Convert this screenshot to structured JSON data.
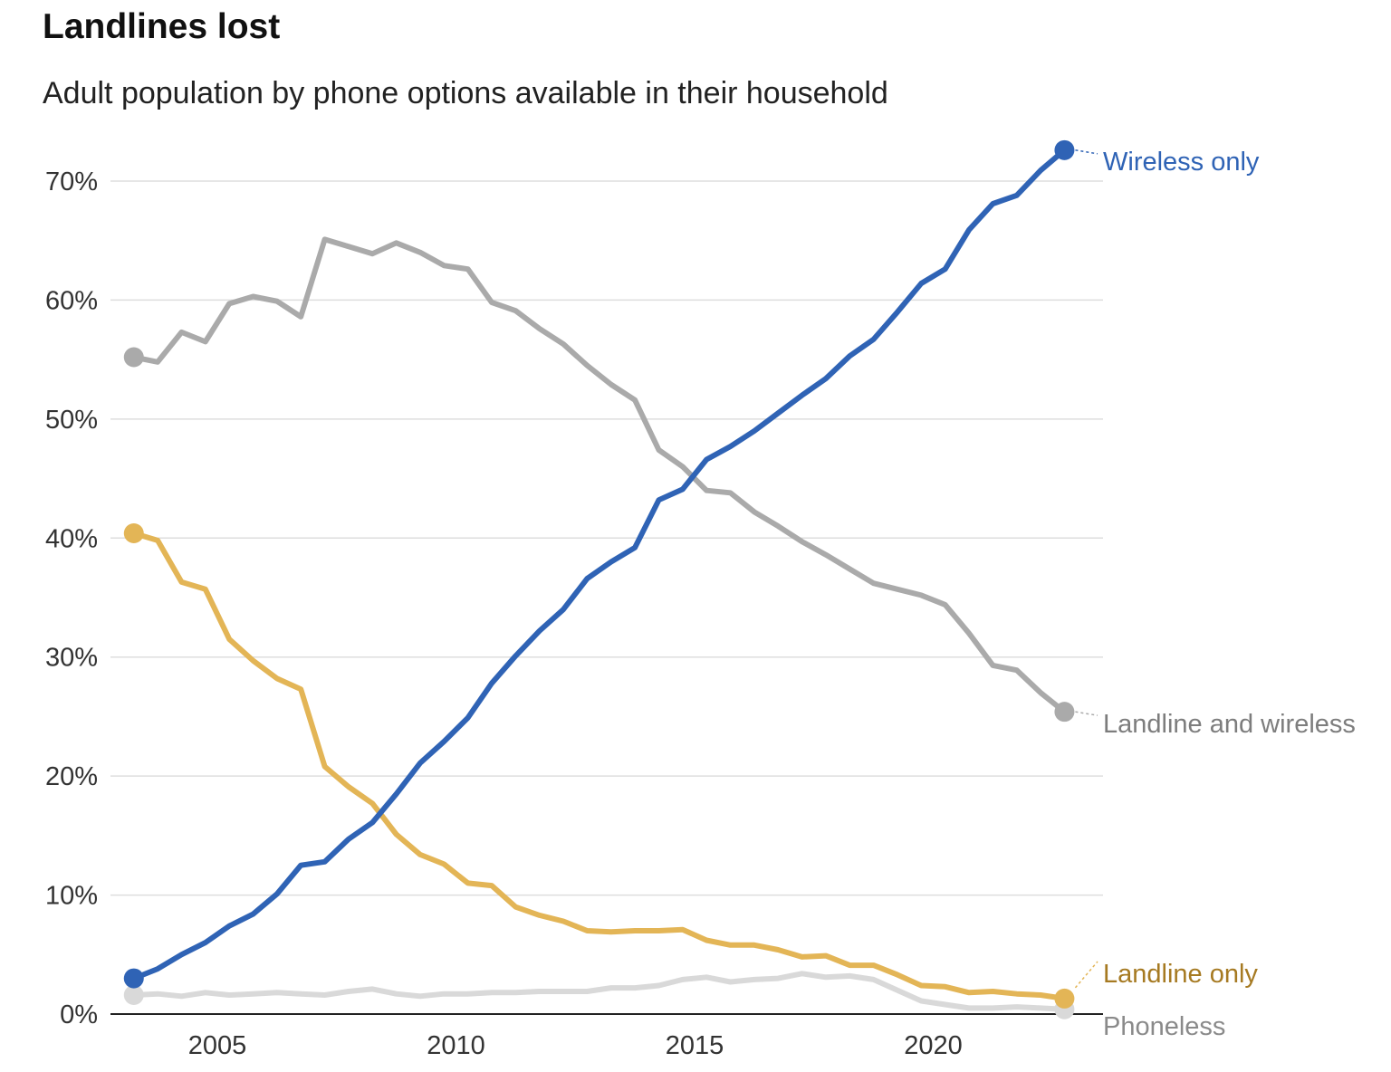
{
  "title": "Landlines lost",
  "subtitle": "Adult population by phone options available in their household",
  "chart_data": {
    "type": "line",
    "title": "Landlines lost",
    "subtitle": "Adult population by phone options available in their household",
    "xlabel": "",
    "ylabel": "",
    "xlim": [
      2003,
      2023.5
    ],
    "ylim": [
      0,
      70
    ],
    "x_ticks": [
      2005,
      2010,
      2015,
      2020
    ],
    "y_ticks": [
      0,
      10,
      20,
      30,
      40,
      50,
      60,
      70
    ],
    "y_tick_labels": [
      "0%",
      "10%",
      "20%",
      "30%",
      "40%",
      "50%",
      "60%",
      "70%"
    ],
    "grid": "horizontal",
    "legend": "direct labels at right",
    "x": [
      2003.25,
      2003.75,
      2004.25,
      2004.75,
      2005.25,
      2005.75,
      2006.25,
      2006.75,
      2007.25,
      2007.75,
      2008.25,
      2008.75,
      2009.25,
      2009.75,
      2010.25,
      2010.75,
      2011.25,
      2011.75,
      2012.25,
      2012.75,
      2013.25,
      2013.75,
      2014.25,
      2014.75,
      2015.25,
      2015.75,
      2016.25,
      2016.75,
      2017.25,
      2017.75,
      2018.25,
      2018.75,
      2019.25,
      2019.75,
      2020.25,
      2020.75,
      2021.25,
      2021.75,
      2022.25,
      2022.75
    ],
    "series": [
      {
        "name": "Wireless only",
        "color": "#2f63b5",
        "label_color": "#2f63b5",
        "values": [
          3.0,
          3.8,
          5.0,
          6.0,
          7.4,
          8.4,
          10.1,
          12.5,
          12.8,
          14.7,
          16.1,
          18.5,
          21.1,
          22.9,
          24.9,
          27.8,
          30.1,
          32.2,
          34.0,
          36.6,
          38.0,
          39.2,
          43.2,
          44.1,
          46.6,
          47.7,
          49.0,
          50.5,
          52.0,
          53.4,
          55.3,
          56.7,
          59.0,
          61.4,
          62.6,
          65.9,
          68.1,
          68.8,
          70.9,
          72.6
        ]
      },
      {
        "name": "Landline and wireless",
        "color": "#aaaaaa",
        "label_color": "#7d7d7d",
        "values": [
          55.2,
          54.8,
          57.3,
          56.5,
          59.7,
          60.3,
          59.9,
          58.6,
          65.1,
          64.5,
          63.9,
          64.8,
          64.0,
          62.9,
          62.6,
          59.8,
          59.1,
          57.6,
          56.3,
          54.5,
          52.9,
          51.6,
          47.4,
          46.0,
          44.0,
          43.8,
          42.2,
          41.0,
          39.7,
          38.6,
          37.4,
          36.2,
          35.7,
          35.2,
          34.4,
          32.0,
          29.3,
          28.9,
          27.0,
          25.4
        ]
      },
      {
        "name": "Landline only",
        "color": "#e3b556",
        "label_color": "#a67a22",
        "values": [
          40.4,
          39.8,
          36.3,
          35.7,
          31.5,
          29.7,
          28.2,
          27.3,
          20.8,
          19.1,
          17.7,
          15.1,
          13.4,
          12.6,
          11.0,
          10.8,
          9.0,
          8.3,
          7.8,
          7.0,
          6.9,
          7.0,
          7.0,
          7.1,
          6.2,
          5.8,
          5.8,
          5.4,
          4.8,
          4.9,
          4.1,
          4.1,
          3.3,
          2.4,
          2.3,
          1.8,
          1.9,
          1.7,
          1.6,
          1.3
        ]
      },
      {
        "name": "Phoneless",
        "color": "#d9d9d9",
        "label_color": "#8a8a8a",
        "values": [
          1.6,
          1.7,
          1.5,
          1.8,
          1.6,
          1.7,
          1.8,
          1.7,
          1.6,
          1.9,
          2.1,
          1.7,
          1.5,
          1.7,
          1.7,
          1.8,
          1.8,
          1.9,
          1.9,
          1.9,
          2.2,
          2.2,
          2.4,
          2.9,
          3.1,
          2.7,
          2.9,
          3.0,
          3.4,
          3.1,
          3.2,
          2.9,
          2.0,
          1.1,
          0.8,
          0.5,
          0.5,
          0.6,
          0.5,
          0.4
        ]
      }
    ]
  }
}
